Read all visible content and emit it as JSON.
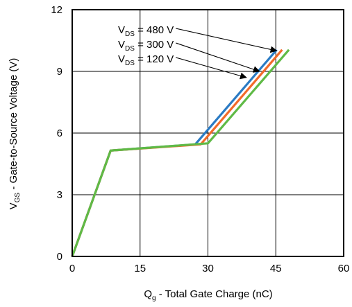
{
  "chart_data": {
    "type": "line",
    "xlabel": {
      "main": "Q",
      "sub": "g",
      "rest": " - Total Gate Charge (nC)"
    },
    "ylabel": {
      "main": "V",
      "sub": "GS",
      "rest": " - Gate-to-Source Voltage (V)"
    },
    "xlim": [
      0,
      60
    ],
    "ylim": [
      0,
      12
    ],
    "xticks": [
      0,
      15,
      30,
      45,
      60
    ],
    "yticks": [
      0,
      3,
      6,
      9,
      12
    ],
    "grid": true,
    "series": [
      {
        "name": "V_DS = 480 V",
        "color": "#2b7bc4",
        "points": [
          [
            0,
            0
          ],
          [
            8.5,
            5.15
          ],
          [
            27.2,
            5.45
          ],
          [
            45.2,
            10.05
          ]
        ]
      },
      {
        "name": "V_DS = 300 V",
        "color": "#f26b2a",
        "points": [
          [
            0,
            0
          ],
          [
            8.5,
            5.15
          ],
          [
            28.4,
            5.45
          ],
          [
            46.4,
            10.05
          ]
        ]
      },
      {
        "name": "V_DS = 120 V",
        "color": "#5fba46",
        "points": [
          [
            0,
            0
          ],
          [
            8.5,
            5.15
          ],
          [
            30.0,
            5.5
          ],
          [
            47.9,
            10.05
          ]
        ]
      }
    ],
    "annotations": [
      {
        "main": "V",
        "sub": "DS",
        "rest": " = 480 V",
        "target": [
          45.2,
          10.0
        ]
      },
      {
        "main": "V",
        "sub": "DS",
        "rest": " = 300 V",
        "target": [
          41.4,
          9.0
        ]
      },
      {
        "main": "V",
        "sub": "DS",
        "rest": " = 120 V",
        "target": [
          38.5,
          8.7
        ]
      }
    ]
  }
}
